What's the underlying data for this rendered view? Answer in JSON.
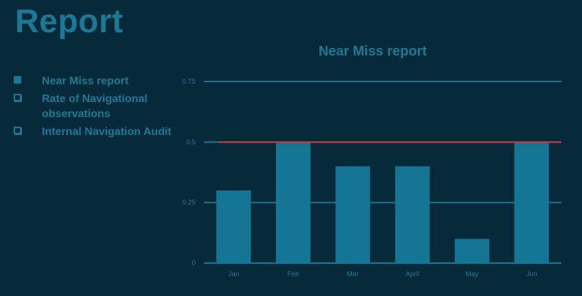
{
  "page": {
    "title": "Report"
  },
  "legend": {
    "items": [
      {
        "label": "Near Miss report",
        "marker": "filled"
      },
      {
        "label": "Rate of Navigational observations",
        "marker": "hollow"
      },
      {
        "label": "Internal Navigation Audit",
        "marker": "hollow"
      }
    ]
  },
  "colors": {
    "background": "#062a3a",
    "accent": "#1a7a96",
    "bar": "#157594",
    "target_line": "#c0393b"
  },
  "chart_data": {
    "type": "bar",
    "title": "Near Miss report",
    "categories": [
      "Jan",
      "Feb",
      "Mar",
      "April",
      "May",
      "Jun"
    ],
    "values": [
      0.3,
      0.5,
      0.4,
      0.4,
      0.1,
      0.5
    ],
    "reference_line": 0.5,
    "ylim": [
      0,
      0.75
    ],
    "yticks": [
      "0",
      "0.25",
      "0.5",
      "0.75"
    ],
    "ytick_values": [
      0,
      0.25,
      0.5,
      0.75
    ],
    "grid": true,
    "xlabel": "",
    "ylabel": ""
  }
}
